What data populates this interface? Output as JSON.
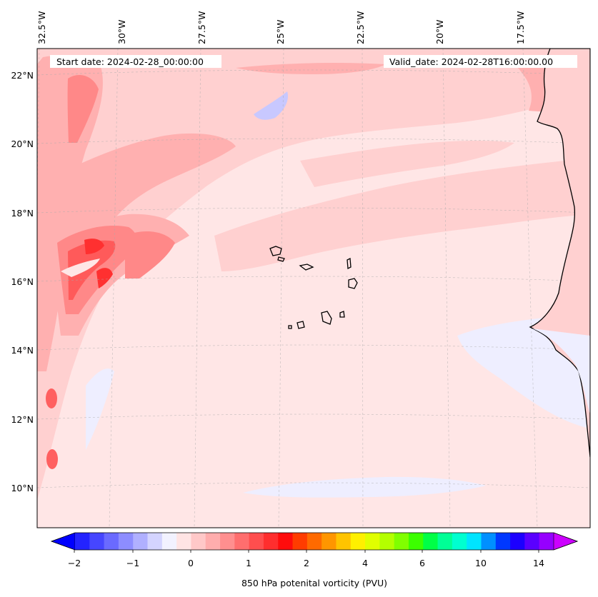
{
  "header": {
    "start_date": "Start date: 2024-02-28_00:00:00",
    "valid_date": "Valid_date: 2024-02-28T16:00:00.00"
  },
  "map": {
    "lon_labels": [
      "32.5°W",
      "30°W",
      "27.5°W",
      "25°W",
      "22.5°W",
      "20°W",
      "17.5°W"
    ],
    "lat_labels": [
      "22°N",
      "20°N",
      "18°N",
      "16°N",
      "14°N",
      "12°N",
      "10°N"
    ],
    "gridlines": true,
    "field": "850 hPa potential vorticity",
    "colors": {
      "ocean_background": "#ffe6e6",
      "light_pink": "#ffd0d0",
      "pink": "#ffb0b0",
      "rose": "#ff8888",
      "red": "#ff5a5a",
      "strong_red": "#ff3030",
      "lavender": "#eeeeff",
      "light_blue": "#c8c8ff",
      "coastline": "#000000"
    }
  },
  "colorbar": {
    "label": "850 hPa potenital vorticity (PVU)",
    "tick_labels": [
      "−2",
      "−1",
      "0",
      "1",
      "2",
      "4",
      "6",
      "10",
      "14"
    ],
    "extend": "both",
    "under_color": "#0000ff",
    "over_color": "#cc00ff",
    "colors": [
      "#2323ff",
      "#4646ff",
      "#6a6aff",
      "#8d8dff",
      "#b0b0ff",
      "#d4d4ff",
      "#f2f2ff",
      "#ffe4e4",
      "#ffc8c8",
      "#ffadad",
      "#ff8f8f",
      "#ff6e6e",
      "#ff4e4e",
      "#ff2e2e",
      "#ff0c0c",
      "#ff3c00",
      "#ff6a00",
      "#ff9600",
      "#ffc400",
      "#fff000",
      "#e0ff00",
      "#b4ff00",
      "#80ff00",
      "#3cff00",
      "#00ff46",
      "#00ff96",
      "#00ffd0",
      "#00e4ff",
      "#0090ff",
      "#0038ff",
      "#1c00ff",
      "#5a00ff",
      "#9600ff"
    ]
  }
}
